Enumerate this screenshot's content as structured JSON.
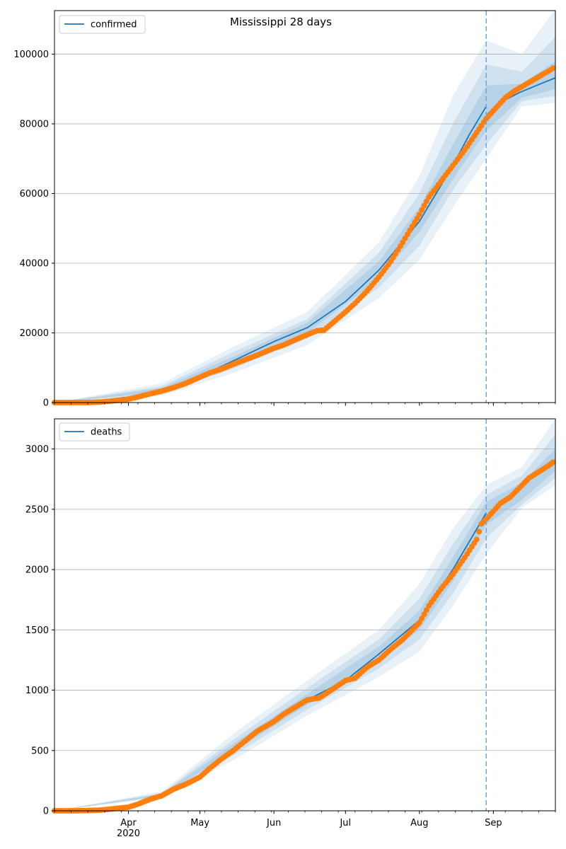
{
  "figure": {
    "title": "Mississippi 28 days",
    "colors": {
      "model_line": "#1f77b4",
      "observed_points": "#ff7f0e",
      "band": "#1f77b4",
      "forecast_marker": "#6fa8dc",
      "grid": "#b0b0b0"
    }
  },
  "chart_data": [
    {
      "type": "line",
      "panel": "top",
      "title": "Mississippi 28 days",
      "legend": [
        "confirmed"
      ],
      "legend_position": "top-left",
      "grid": "horizontal",
      "x_start_date": "2020-03-01",
      "x_end_date": "2020-09-27",
      "forecast_start": "2020-08-29",
      "ylim": [
        0,
        112500
      ],
      "yticks": [
        0,
        20000,
        40000,
        60000,
        80000,
        100000
      ],
      "xticks": [
        {
          "date": "2020-04-01",
          "label": "Apr",
          "sub": "2020"
        },
        {
          "date": "2020-05-01",
          "label": "May"
        },
        {
          "date": "2020-06-01",
          "label": "Jun"
        },
        {
          "date": "2020-07-01",
          "label": "Jul"
        },
        {
          "date": "2020-08-01",
          "label": "Aug"
        },
        {
          "date": "2020-09-01",
          "label": "Sep"
        }
      ],
      "model": [
        [
          "2020-03-01",
          0
        ],
        [
          "2020-03-20",
          300
        ],
        [
          "2020-04-01",
          1200
        ],
        [
          "2020-04-15",
          3500
        ],
        [
          "2020-05-01",
          7500
        ],
        [
          "2020-05-15",
          12000
        ],
        [
          "2020-06-01",
          17500
        ],
        [
          "2020-06-15",
          21500
        ],
        [
          "2020-07-01",
          29000
        ],
        [
          "2020-07-15",
          38000
        ],
        [
          "2020-08-01",
          52000
        ],
        [
          "2020-08-08",
          60000
        ],
        [
          "2020-08-15",
          68000
        ],
        [
          "2020-08-22",
          77000
        ],
        [
          "2020-08-29",
          85000
        ]
      ],
      "forecast": [
        [
          "2020-08-29",
          82500
        ],
        [
          "2020-09-05",
          86500
        ],
        [
          "2020-09-12",
          89000
        ],
        [
          "2020-09-19",
          91000
        ],
        [
          "2020-09-27",
          93200
        ]
      ],
      "bands": [
        {
          "level": "outer",
          "x": [
            "2020-03-01",
            "2020-04-15",
            "2020-05-15",
            "2020-06-15",
            "2020-07-15",
            "2020-08-01",
            "2020-08-15",
            "2020-08-29",
            "2020-09-13",
            "2020-09-27"
          ],
          "lower": [
            0,
            2000,
            8500,
            16500,
            30000,
            41000,
            56000,
            70000,
            85000,
            86000
          ],
          "upper": [
            0,
            5500,
            16000,
            26000,
            46000,
            65000,
            88000,
            104000,
            100000,
            113000
          ]
        },
        {
          "level": "middle",
          "x": [
            "2020-03-01",
            "2020-04-15",
            "2020-05-15",
            "2020-06-15",
            "2020-07-15",
            "2020-08-01",
            "2020-08-15",
            "2020-08-29",
            "2020-09-13",
            "2020-09-27"
          ],
          "lower": [
            0,
            2600,
            9800,
            18500,
            33000,
            45000,
            61000,
            74000,
            86500,
            88000
          ],
          "upper": [
            0,
            4700,
            14500,
            24000,
            43000,
            60000,
            80000,
            97000,
            95000,
            105000
          ]
        },
        {
          "level": "inner",
          "x": [
            "2020-03-01",
            "2020-04-15",
            "2020-05-15",
            "2020-06-15",
            "2020-07-15",
            "2020-08-01",
            "2020-08-15",
            "2020-08-29",
            "2020-09-13",
            "2020-09-27"
          ],
          "lower": [
            0,
            3000,
            11000,
            20000,
            35500,
            49000,
            64000,
            78000,
            87500,
            90000
          ],
          "upper": [
            0,
            4200,
            13200,
            23000,
            40500,
            56000,
            74000,
            91000,
            91500,
            98000
          ]
        }
      ],
      "observed": [
        [
          "2020-03-01",
          0
        ],
        [
          "2020-03-10",
          0
        ],
        [
          "2020-03-15",
          10
        ],
        [
          "2020-03-20",
          150
        ],
        [
          "2020-03-25",
          450
        ],
        [
          "2020-04-01",
          1000
        ],
        [
          "2020-04-05",
          1600
        ],
        [
          "2020-04-10",
          2500
        ],
        [
          "2020-04-15",
          3300
        ],
        [
          "2020-04-20",
          4300
        ],
        [
          "2020-04-25",
          5500
        ],
        [
          "2020-05-01",
          7300
        ],
        [
          "2020-05-05",
          8500
        ],
        [
          "2020-05-10",
          9600
        ],
        [
          "2020-05-15",
          11000
        ],
        [
          "2020-05-20",
          12300
        ],
        [
          "2020-05-25",
          13600
        ],
        [
          "2020-06-01",
          15600
        ],
        [
          "2020-06-05",
          16500
        ],
        [
          "2020-06-10",
          18000
        ],
        [
          "2020-06-15",
          19500
        ],
        [
          "2020-06-19",
          20600
        ],
        [
          "2020-06-22",
          20800
        ],
        [
          "2020-06-25",
          22500
        ],
        [
          "2020-07-01",
          26000
        ],
        [
          "2020-07-05",
          28500
        ],
        [
          "2020-07-10",
          32000
        ],
        [
          "2020-07-15",
          36000
        ],
        [
          "2020-07-20",
          40500
        ],
        [
          "2020-07-25",
          46000
        ],
        [
          "2020-08-01",
          54000
        ],
        [
          "2020-08-05",
          59000
        ],
        [
          "2020-08-10",
          63500
        ],
        [
          "2020-08-15",
          68000
        ],
        [
          "2020-08-20",
          72500
        ],
        [
          "2020-08-25",
          77500
        ],
        [
          "2020-08-29",
          81500
        ],
        [
          "2020-09-02",
          84500
        ],
        [
          "2020-09-06",
          87500
        ],
        [
          "2020-09-10",
          89500
        ],
        [
          "2020-09-15",
          91500
        ],
        [
          "2020-09-20",
          93500
        ],
        [
          "2020-09-25",
          95500
        ],
        [
          "2020-09-26",
          96000
        ]
      ]
    },
    {
      "type": "line",
      "panel": "bottom",
      "title": "",
      "legend": [
        "deaths"
      ],
      "legend_position": "top-left",
      "grid": "horizontal",
      "x_start_date": "2020-03-01",
      "x_end_date": "2020-09-27",
      "forecast_start": "2020-08-29",
      "ylim": [
        0,
        3250
      ],
      "yticks": [
        0,
        500,
        1000,
        1500,
        2000,
        2500,
        3000
      ],
      "xticks": [
        {
          "date": "2020-04-01",
          "label": "Apr",
          "sub": "2020"
        },
        {
          "date": "2020-05-01",
          "label": "May"
        },
        {
          "date": "2020-06-01",
          "label": "Jun"
        },
        {
          "date": "2020-07-01",
          "label": "Jul"
        },
        {
          "date": "2020-08-01",
          "label": "Aug"
        },
        {
          "date": "2020-09-01",
          "label": "Sep"
        }
      ],
      "model": [
        [
          "2020-03-01",
          0
        ],
        [
          "2020-03-20",
          5
        ],
        [
          "2020-04-01",
          30
        ],
        [
          "2020-04-15",
          130
        ],
        [
          "2020-05-01",
          290
        ],
        [
          "2020-05-15",
          520
        ],
        [
          "2020-06-01",
          760
        ],
        [
          "2020-06-15",
          920
        ],
        [
          "2020-07-01",
          1080
        ],
        [
          "2020-07-15",
          1300
        ],
        [
          "2020-08-01",
          1580
        ],
        [
          "2020-08-15",
          2000
        ],
        [
          "2020-08-29",
          2470
        ]
      ],
      "forecast": [
        [
          "2020-08-29",
          2440
        ],
        [
          "2020-09-05",
          2570
        ],
        [
          "2020-09-12",
          2680
        ],
        [
          "2020-09-19",
          2800
        ],
        [
          "2020-09-27",
          2910
        ]
      ],
      "bands": [
        {
          "level": "outer",
          "x": [
            "2020-03-01",
            "2020-04-15",
            "2020-05-15",
            "2020-06-15",
            "2020-07-15",
            "2020-08-01",
            "2020-08-15",
            "2020-08-29",
            "2020-09-13",
            "2020-09-27"
          ],
          "lower": [
            0,
            110,
            420,
            790,
            1110,
            1320,
            1700,
            2130,
            2510,
            2700
          ],
          "upper": [
            0,
            160,
            640,
            1080,
            1500,
            1880,
            2340,
            2700,
            2850,
            3250
          ]
        },
        {
          "level": "middle",
          "x": [
            "2020-03-01",
            "2020-04-15",
            "2020-05-15",
            "2020-06-15",
            "2020-07-15",
            "2020-08-01",
            "2020-08-15",
            "2020-08-29",
            "2020-09-13",
            "2020-09-27"
          ],
          "lower": [
            0,
            118,
            460,
            840,
            1180,
            1420,
            1800,
            2260,
            2540,
            2760
          ],
          "upper": [
            0,
            148,
            590,
            1020,
            1420,
            1760,
            2210,
            2620,
            2780,
            3120
          ]
        },
        {
          "level": "inner",
          "x": [
            "2020-03-01",
            "2020-04-15",
            "2020-05-15",
            "2020-06-15",
            "2020-07-15",
            "2020-08-01",
            "2020-08-15",
            "2020-08-29",
            "2020-09-13",
            "2020-09-27"
          ],
          "lower": [
            0,
            124,
            490,
            880,
            1240,
            1500,
            1900,
            2370,
            2580,
            2820
          ],
          "upper": [
            0,
            140,
            555,
            970,
            1360,
            1660,
            2100,
            2560,
            2720,
            3000
          ]
        }
      ],
      "observed": [
        [
          "2020-03-01",
          0
        ],
        [
          "2020-03-10",
          0
        ],
        [
          "2020-03-20",
          5
        ],
        [
          "2020-03-25",
          15
        ],
        [
          "2020-04-01",
          30
        ],
        [
          "2020-04-05",
          55
        ],
        [
          "2020-04-10",
          95
        ],
        [
          "2020-04-15",
          125
        ],
        [
          "2020-04-20",
          180
        ],
        [
          "2020-04-25",
          220
        ],
        [
          "2020-05-01",
          280
        ],
        [
          "2020-05-05",
          350
        ],
        [
          "2020-05-10",
          430
        ],
        [
          "2020-05-15",
          500
        ],
        [
          "2020-05-20",
          580
        ],
        [
          "2020-05-25",
          660
        ],
        [
          "2020-06-01",
          740
        ],
        [
          "2020-06-05",
          800
        ],
        [
          "2020-06-10",
          860
        ],
        [
          "2020-06-15",
          920
        ],
        [
          "2020-06-20",
          935
        ],
        [
          "2020-06-25",
          1000
        ],
        [
          "2020-07-01",
          1080
        ],
        [
          "2020-07-05",
          1100
        ],
        [
          "2020-07-10",
          1190
        ],
        [
          "2020-07-15",
          1250
        ],
        [
          "2020-07-20",
          1340
        ],
        [
          "2020-07-25",
          1420
        ],
        [
          "2020-08-01",
          1560
        ],
        [
          "2020-08-05",
          1700
        ],
        [
          "2020-08-10",
          1840
        ],
        [
          "2020-08-15",
          1960
        ],
        [
          "2020-08-20",
          2100
        ],
        [
          "2020-08-25",
          2250
        ],
        [
          "2020-08-27",
          2380
        ],
        [
          "2020-08-30",
          2440
        ],
        [
          "2020-09-04",
          2550
        ],
        [
          "2020-09-08",
          2600
        ],
        [
          "2020-09-12",
          2680
        ],
        [
          "2020-09-16",
          2760
        ],
        [
          "2020-09-20",
          2810
        ],
        [
          "2020-09-24",
          2860
        ],
        [
          "2020-09-26",
          2890
        ]
      ]
    }
  ]
}
